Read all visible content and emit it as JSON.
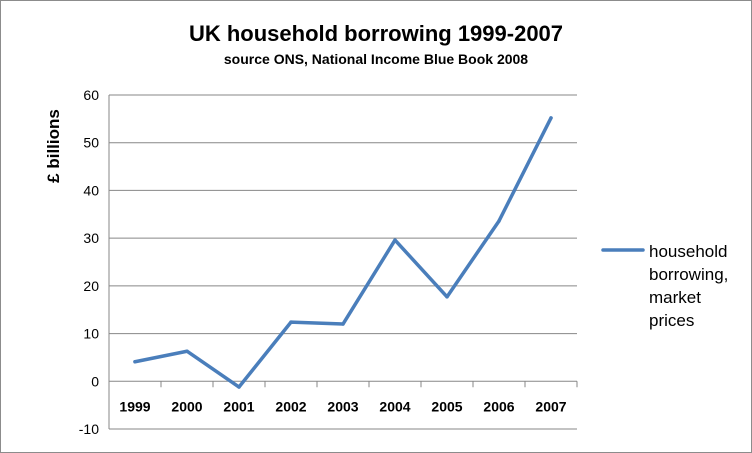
{
  "chart_data": {
    "type": "line",
    "title": "UK household borrowing 1999-2007",
    "subtitle": "source ONS, National Income Blue Book 2008",
    "ylabel": "£ billions",
    "xlabel": "",
    "ylim": [
      -10,
      60
    ],
    "yticks": [
      -10,
      0,
      10,
      20,
      30,
      40,
      50,
      60
    ],
    "grid": true,
    "legend_position": "right",
    "categories": [
      "1999",
      "2000",
      "2001",
      "2002",
      "2003",
      "2004",
      "2005",
      "2006",
      "2007"
    ],
    "series": [
      {
        "name": "household borrowing, market prices",
        "legend_lines": [
          "household",
          "borrowing,",
          "market",
          "prices"
        ],
        "color": "#4a7ebb",
        "values": [
          4.1,
          6.3,
          -1.2,
          12.4,
          12.0,
          29.6,
          17.7,
          33.6,
          55.2
        ]
      }
    ]
  }
}
